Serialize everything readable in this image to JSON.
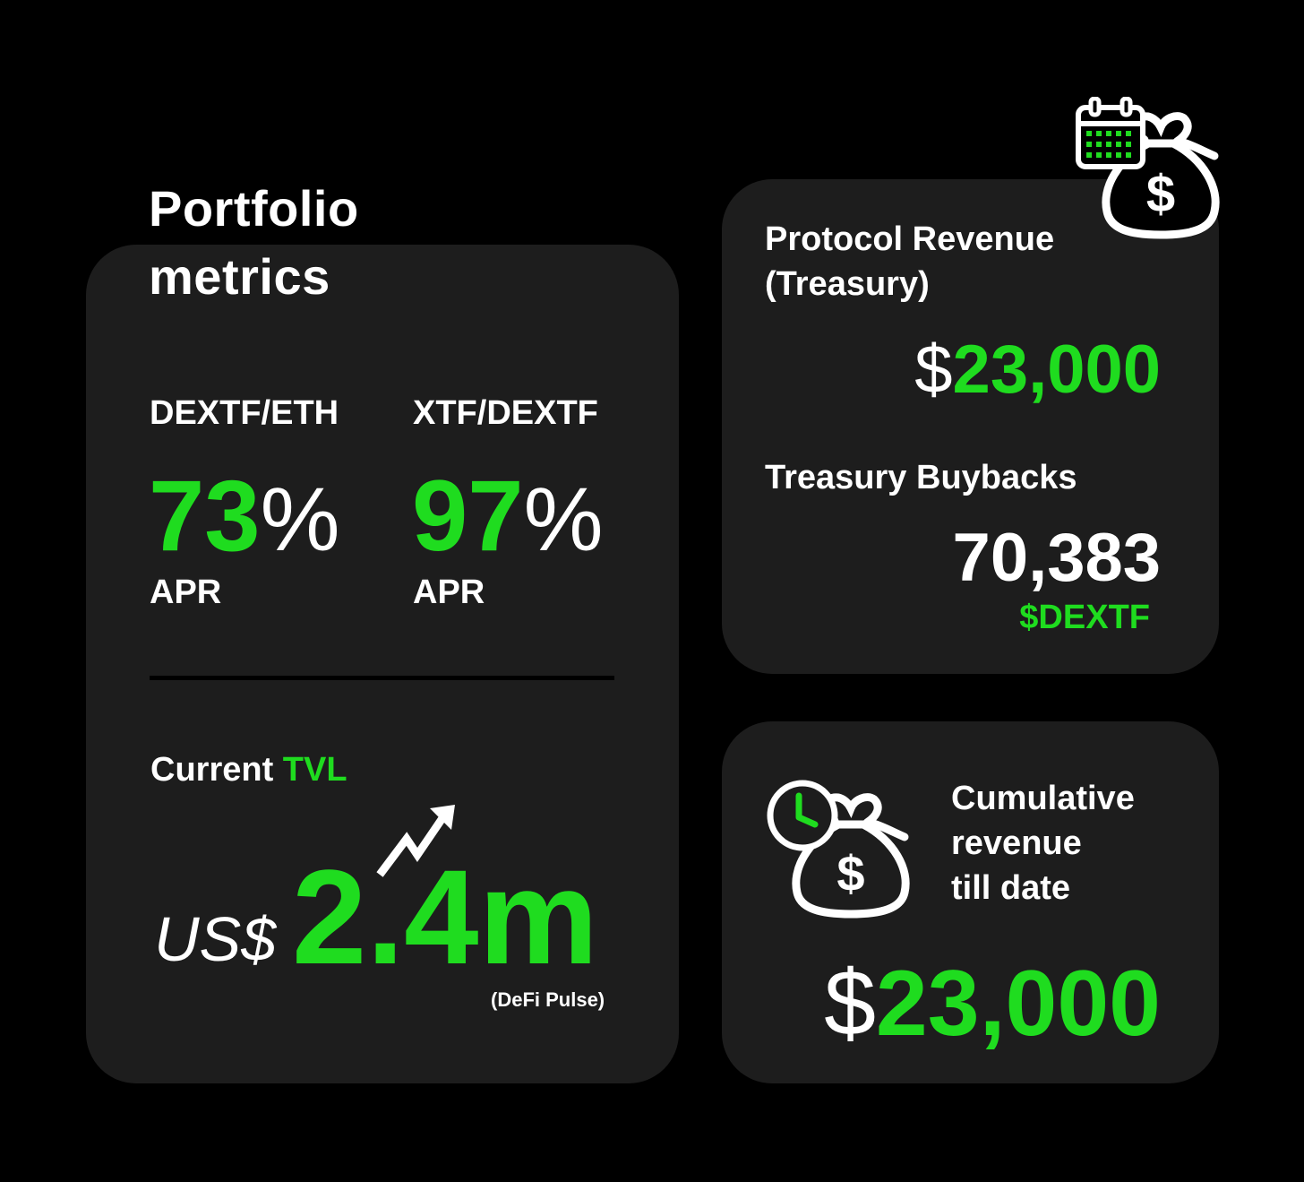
{
  "title": "Portfolio metrics",
  "title_line1": "Portfolio",
  "title_line2": "metrics",
  "apr_pairs": [
    {
      "pair": "DEXTF/ETH",
      "value": "73",
      "unit": "%",
      "label": "APR"
    },
    {
      "pair": "XTF/DEXTF",
      "value": "97",
      "unit": "%",
      "label": "APR"
    }
  ],
  "tvl": {
    "label_prefix": "Current",
    "label_highlight": "TVL",
    "currency": "US$",
    "value": "2.4m",
    "source": "(DeFi Pulse)"
  },
  "protocol_revenue": {
    "label_line1": "Protocol Revenue",
    "label_line2": "(Treasury)",
    "symbol": "$",
    "value": "23,000"
  },
  "buybacks": {
    "label": "Treasury Buybacks",
    "value": "70,383",
    "unit": "$DEXTF"
  },
  "cumulative": {
    "label_line1": "Cumulative",
    "label_line2": "revenue",
    "label_line3": "till date",
    "symbol": "$",
    "value": "23,000"
  },
  "icons": [
    "calendar-icon",
    "money-bag-icon",
    "clock-icon",
    "trend-arrow-icon"
  ],
  "colors": {
    "background": "#000000",
    "card": "#1d1d1d",
    "accent": "#1fdc1f",
    "text": "#ffffff"
  }
}
